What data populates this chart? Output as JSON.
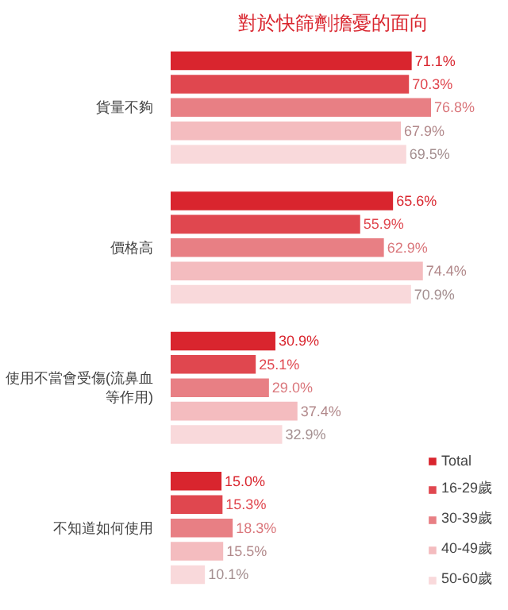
{
  "chart_data": {
    "type": "bar",
    "orientation": "horizontal",
    "title": "對於快篩劑擔憂的面向",
    "categories": [
      "貨量不夠",
      "價格高",
      "使用不當會受傷(流鼻血等作用)",
      "不知道如何使用"
    ],
    "series": [
      {
        "name": "Total",
        "color": "#d9252e",
        "values": [
          71.1,
          65.6,
          30.9,
          15.0
        ],
        "value_labels": [
          "71.1%",
          "65.6%",
          "30.9%",
          "15.0%"
        ]
      },
      {
        "name": "16-29歲",
        "color": "#e0474f",
        "values": [
          70.3,
          55.9,
          25.1,
          15.3
        ],
        "value_labels": [
          "70.3%",
          "55.9%",
          "25.1%",
          "15.3%"
        ]
      },
      {
        "name": "30-39歲",
        "color": "#e87f84",
        "values": [
          76.8,
          62.9,
          29.0,
          18.3
        ],
        "value_labels": [
          "76.8%",
          "62.9%",
          "29.0%",
          "18.3%"
        ]
      },
      {
        "name": "40-49歲",
        "color": "#f4bcbf",
        "values": [
          67.9,
          74.4,
          37.4,
          15.5
        ],
        "value_labels": [
          "67.9%",
          "74.4%",
          "37.4%",
          "15.5%"
        ]
      },
      {
        "name": "50-60歲",
        "color": "#f9d9db",
        "values": [
          69.5,
          70.9,
          32.9,
          10.1
        ],
        "value_labels": [
          "69.5%",
          "70.9%",
          "32.9%",
          "10.1%"
        ]
      }
    ],
    "legend": "bottom right",
    "grid": false
  }
}
